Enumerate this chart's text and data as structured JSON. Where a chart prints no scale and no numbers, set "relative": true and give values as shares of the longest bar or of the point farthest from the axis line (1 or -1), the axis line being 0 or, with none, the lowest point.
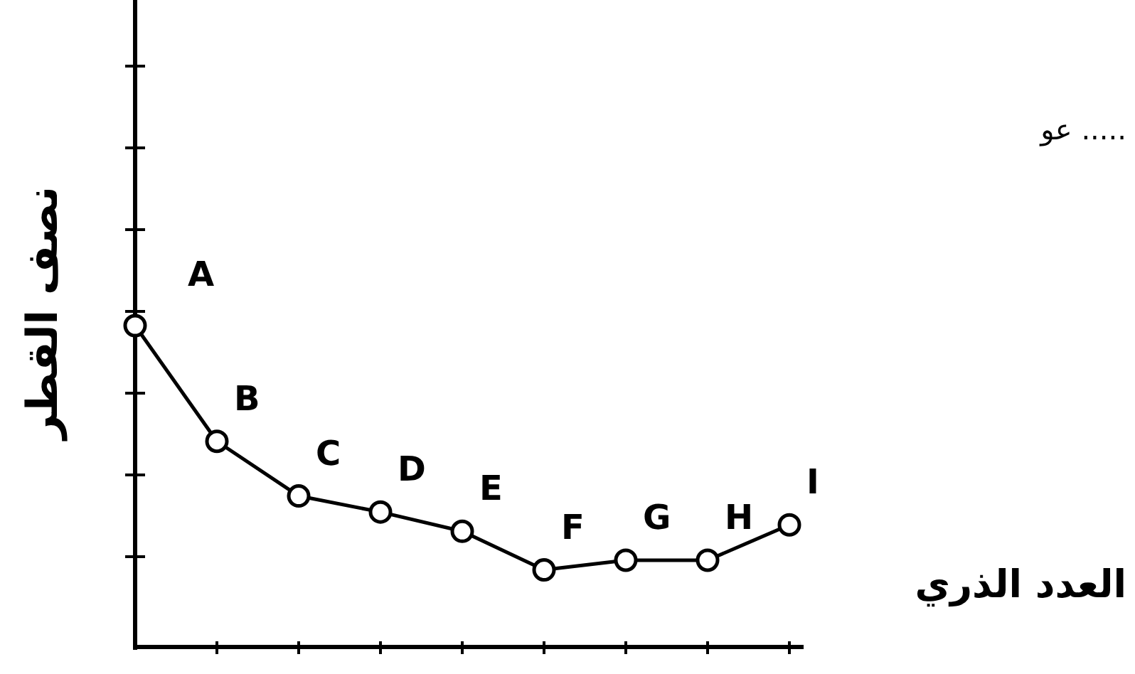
{
  "chart_data": {
    "type": "line",
    "relative": true,
    "xlabel": "العدد الذري",
    "ylabel": "نصف القطر",
    "categories": [
      null,
      null,
      null,
      null,
      null,
      null,
      null,
      null,
      null
    ],
    "series": [
      {
        "color": "#000000",
        "values": [
          1,
          0.64,
          0.47,
          0.42,
          0.36,
          0.24,
          0.27,
          0.27,
          0.38
        ]
      }
    ],
    "marker": "circle",
    "annotations": [
      "A",
      "B",
      "C",
      "D",
      "E",
      "F",
      "G",
      "H",
      "I",
      "عو ....."
    ]
  }
}
